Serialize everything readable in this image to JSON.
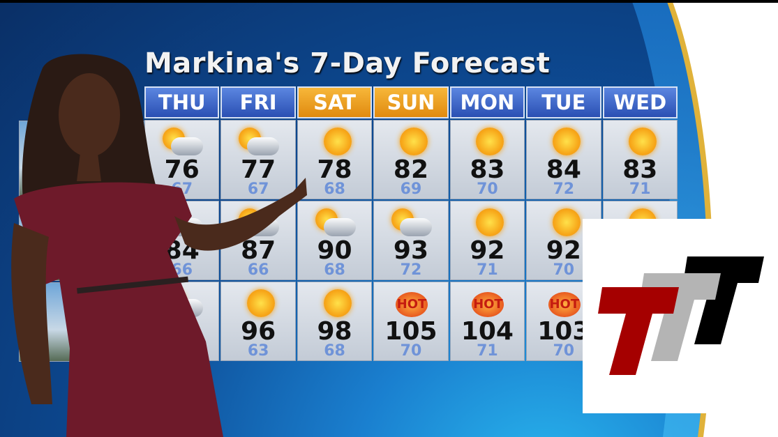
{
  "title": "Markina's 7-Day Forecast",
  "days": [
    {
      "label": "THU",
      "weekend": false
    },
    {
      "label": "FRI",
      "weekend": false
    },
    {
      "label": "SAT",
      "weekend": true
    },
    {
      "label": "SUN",
      "weekend": true
    },
    {
      "label": "MON",
      "weekend": false
    },
    {
      "label": "TUE",
      "weekend": false
    },
    {
      "label": "WED",
      "weekend": false
    }
  ],
  "rows": [
    [
      {
        "icon": "partly-cloudy",
        "hi": "76",
        "lo": "67"
      },
      {
        "icon": "partly-cloudy",
        "hi": "77",
        "lo": "67"
      },
      {
        "icon": "sunny",
        "hi": "78",
        "lo": "68"
      },
      {
        "icon": "sunny",
        "hi": "82",
        "lo": "69"
      },
      {
        "icon": "sunny",
        "hi": "83",
        "lo": "70"
      },
      {
        "icon": "sunny",
        "hi": "84",
        "lo": "72"
      },
      {
        "icon": "sunny",
        "hi": "83",
        "lo": "71"
      }
    ],
    [
      {
        "icon": "partly-cloudy",
        "hi": "84",
        "lo": "66"
      },
      {
        "icon": "partly-cloudy",
        "hi": "87",
        "lo": "66"
      },
      {
        "icon": "partly-cloudy",
        "hi": "90",
        "lo": "68"
      },
      {
        "icon": "partly-cloudy",
        "hi": "93",
        "lo": "72"
      },
      {
        "icon": "sunny",
        "hi": "92",
        "lo": "71"
      },
      {
        "icon": "sunny",
        "hi": "92",
        "lo": "70"
      },
      {
        "icon": "sunny",
        "hi": "",
        "lo": ""
      }
    ],
    [
      {
        "icon": "partly-cloudy",
        "hi": "",
        "lo": ""
      },
      {
        "icon": "sunny",
        "hi": "96",
        "lo": "63"
      },
      {
        "icon": "sunny",
        "hi": "98",
        "lo": "68"
      },
      {
        "icon": "hot",
        "hi": "105",
        "lo": "70"
      },
      {
        "icon": "hot",
        "hi": "104",
        "lo": "71"
      },
      {
        "icon": "hot",
        "hi": "103",
        "lo": "70"
      },
      {
        "icon": "",
        "hi": "",
        "lo": ""
      }
    ]
  ],
  "hot_label": "HOT",
  "colors": {
    "logo_red": "#a50000",
    "logo_gray": "#b4b4b4",
    "logo_black": "#000000",
    "weekend_header": "#f0a020",
    "weekday_header": "#3a62c6"
  }
}
